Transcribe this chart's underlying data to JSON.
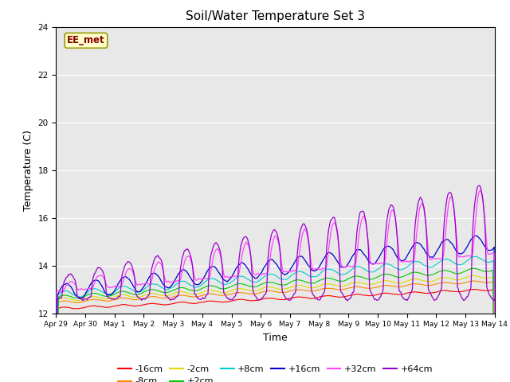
{
  "title": "Soil/Water Temperature Set 3",
  "xlabel": "Time",
  "ylabel": "Temperature (C)",
  "ylim": [
    12,
    24
  ],
  "background_color": "#e8e8e8",
  "watermark": "EE_met",
  "xtick_labels": [
    "Apr 29",
    "Apr 30",
    "May 1",
    "May 2",
    "May 3",
    "May 4",
    "May 5",
    "May 6",
    "May 7",
    "May 8",
    "May 9",
    "May 10",
    "May 11",
    "May 12",
    "May 13",
    "May 14"
  ],
  "colors": {
    "-16cm": "#ff0000",
    "-8cm": "#ff8800",
    "-2cm": "#dddd00",
    "+2cm": "#00cc00",
    "+8cm": "#00cccc",
    "+16cm": "#0000cc",
    "+32cm": "#ff44ff",
    "+64cm": "#9900cc"
  }
}
